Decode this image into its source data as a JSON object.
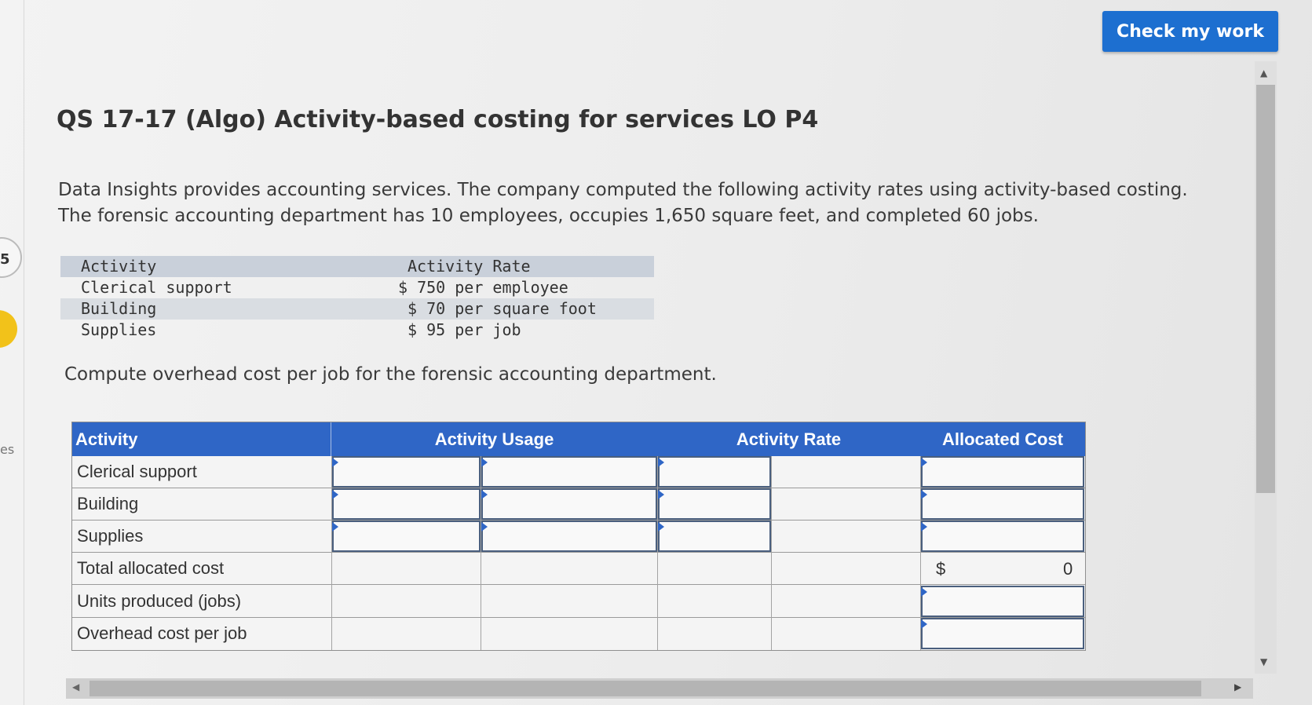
{
  "header": {
    "check_button_label": "Check my work"
  },
  "edge": {
    "number": "5",
    "text": "es"
  },
  "question": {
    "title": "QS 17-17 (Algo) Activity-based costing for services LO P4",
    "intro_line1": "Data Insights provides accounting services. The company computed the following activity rates using activity-based costing.",
    "intro_line2": "The forensic accounting department has 10 employees, occupies 1,650 square feet, and completed 60 jobs.",
    "instruction": "Compute overhead cost per job for the forensic accounting department."
  },
  "rates_table": {
    "headers": [
      "Activity",
      "Activity Rate"
    ],
    "rows": [
      {
        "activity": "Clerical support",
        "rate": "$ 750 per employee"
      },
      {
        "activity": "Building",
        "rate": " $ 70 per square foot"
      },
      {
        "activity": "Supplies",
        "rate": " $ 95 per job"
      }
    ]
  },
  "answer_table": {
    "headers": {
      "activity": "Activity",
      "usage": "Activity Usage",
      "rate": "Activity Rate",
      "allocated": "Allocated Cost"
    },
    "rows": [
      "Clerical support",
      "Building",
      "Supplies",
      "Total allocated cost",
      "Units produced (jobs)",
      "Overhead cost per job"
    ],
    "total_currency": "$",
    "total_value": "0"
  },
  "colors": {
    "accent": "#2f66c6",
    "button": "#1d6fd0",
    "marker": "#2f66c6"
  }
}
